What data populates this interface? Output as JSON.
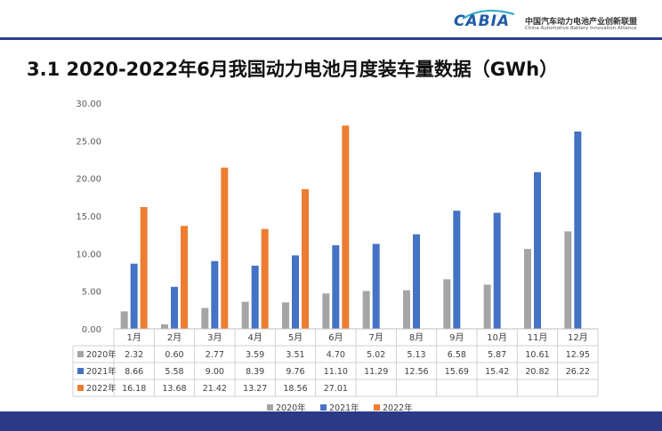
{
  "header": {
    "logo_text": "CABIA",
    "org_name_cn": "中国汽车动力电池产业创新联盟",
    "org_name_en": "China Automotive Battery Innovation Alliance"
  },
  "title": "3.1 2020-2022年6月我国动力电池月度装车量数据（GWh）",
  "chart_data": {
    "type": "bar",
    "categories": [
      "1月",
      "2月",
      "3月",
      "4月",
      "5月",
      "6月",
      "7月",
      "8月",
      "9月",
      "10月",
      "11月",
      "12月"
    ],
    "series": [
      {
        "name": "2020年",
        "color": "#a5a5a5",
        "values": [
          2.32,
          0.6,
          2.77,
          3.59,
          3.51,
          4.7,
          5.02,
          5.13,
          6.58,
          5.87,
          10.61,
          12.95
        ]
      },
      {
        "name": "2021年",
        "color": "#4472c4",
        "values": [
          8.66,
          5.58,
          9.0,
          8.39,
          9.76,
          11.1,
          11.29,
          12.56,
          15.69,
          15.42,
          20.82,
          26.22
        ]
      },
      {
        "name": "2022年",
        "color": "#ed7d31",
        "values": [
          16.18,
          13.68,
          21.42,
          13.27,
          18.56,
          27.01,
          null,
          null,
          null,
          null,
          null,
          null
        ]
      }
    ],
    "value_labels": [
      [
        "2.32",
        "0.60",
        "2.77",
        "3.59",
        "3.51",
        "4.70",
        "5.02",
        "5.13",
        "6.58",
        "5.87",
        "10.61",
        "12.95"
      ],
      [
        "8.66",
        "5.58",
        "9.00",
        "8.39",
        "9.76",
        "11.10",
        "11.29",
        "12.56",
        "15.69",
        "15.42",
        "20.82",
        "26.22"
      ],
      [
        "16.18",
        "13.68",
        "21.42",
        "13.27",
        "18.56",
        "27.01",
        "",
        "",
        "",
        "",
        "",
        ""
      ]
    ],
    "ylim": [
      0,
      30
    ],
    "yticks": [
      0,
      5,
      10,
      15,
      20,
      25,
      30
    ],
    "ytick_labels": [
      "0.00",
      "5.00",
      "10.00",
      "15.00",
      "20.00",
      "25.00",
      "30.00"
    ],
    "grid": false,
    "legend_position": "bottom",
    "data_table": true
  }
}
